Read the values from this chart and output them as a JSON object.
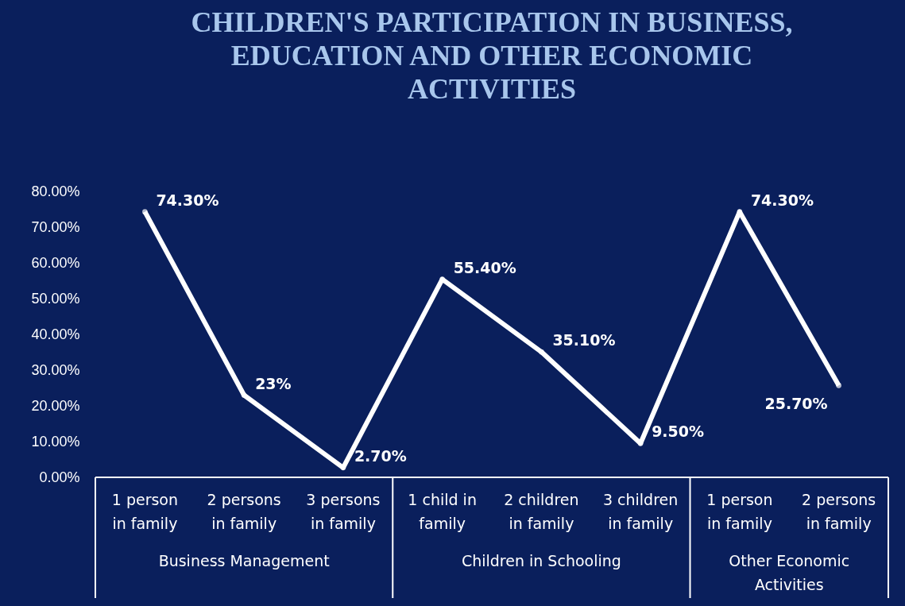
{
  "chart_data": {
    "type": "line",
    "title": "CHILDREN'S PARTICIPATION IN BUSINESS, EDUCATION AND OTHER ECONOMIC ACTIVITIES",
    "categories": [
      "1 person in family",
      "2 persons in family",
      "3 persons in family",
      "1 child in family",
      "2 children in family",
      "3 children in family",
      "1 person in family",
      "2 persons in family"
    ],
    "values": [
      74.3,
      23,
      2.7,
      55.4,
      35.1,
      9.5,
      74.3,
      25.7
    ],
    "value_labels": [
      "74.30%",
      "23%",
      "2.70%",
      "55.40%",
      "35.10%",
      "9.50%",
      "74.30%",
      "25.70%"
    ],
    "color": "#ffffff",
    "marker": "circle",
    "ylim": [
      0,
      80
    ],
    "yticks": [
      {
        "value": 0,
        "label": "0.00%"
      },
      {
        "value": 10,
        "label": "10.00%"
      },
      {
        "value": 20,
        "label": "20.00%"
      },
      {
        "value": 30,
        "label": "30.00%"
      },
      {
        "value": 40,
        "label": "40.00%"
      },
      {
        "value": 50,
        "label": "50.00%"
      },
      {
        "value": 60,
        "label": "60.00%"
      },
      {
        "value": 70,
        "label": "70.00%"
      },
      {
        "value": 80,
        "label": "80.00%"
      }
    ],
    "annotations": [
      "Business Management",
      "Children in Schooling",
      "Other Economic Activities"
    ]
  }
}
